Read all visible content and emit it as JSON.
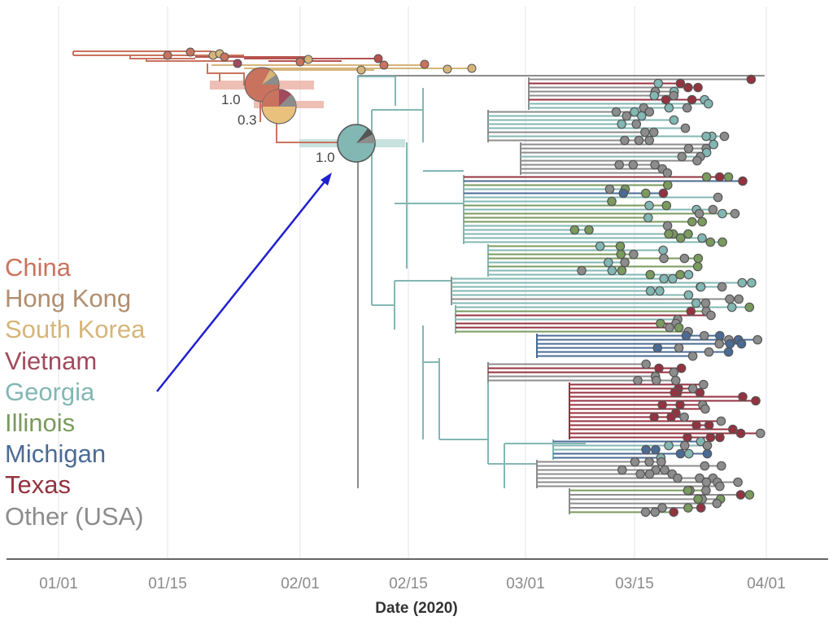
{
  "figure": {
    "xlabel": "Date (2020)",
    "x_ticks": [
      "01/01",
      "01/15",
      "02/01",
      "02/15",
      "03/01",
      "03/15",
      "04/01"
    ],
    "grid": true
  },
  "legend": {
    "placement": "left",
    "items": [
      {
        "label": "China",
        "color": "#c9735e"
      },
      {
        "label": "Hong Kong",
        "color": "#b08e6e"
      },
      {
        "label": "South Korea",
        "color": "#d6b57a"
      },
      {
        "label": "Vietnam",
        "color": "#a24a5c"
      },
      {
        "label": "Georgia",
        "color": "#82b7b3"
      },
      {
        "label": "Illinois",
        "color": "#7a9a5e"
      },
      {
        "label": "Michigan",
        "color": "#4a6b95"
      },
      {
        "label": "Texas",
        "color": "#94323f"
      },
      {
        "label": "Other (USA)",
        "color": "#8c8c8c"
      }
    ]
  },
  "node_supports": [
    {
      "label": "1.0",
      "node": "china-root"
    },
    {
      "label": "0.3",
      "node": "korea-split"
    },
    {
      "label": "1.0",
      "node": "usa-root"
    }
  ],
  "annotation": {
    "type": "arrow",
    "color": "#1f1fd0",
    "points_to": "usa-root"
  }
}
